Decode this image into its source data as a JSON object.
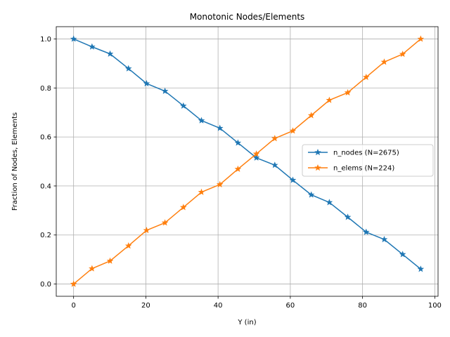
{
  "chart_data": {
    "type": "line",
    "title": "Monotonic Nodes/Elements",
    "xlabel": "Y (in)",
    "ylabel": "Fraction of Nodes, Elements",
    "xlim": [
      -4.8,
      100.9
    ],
    "ylim": [
      -0.05,
      1.05
    ],
    "xticks": [
      0,
      20,
      40,
      60,
      80,
      100
    ],
    "yticks": [
      0.0,
      0.2,
      0.4,
      0.6,
      0.8,
      1.0
    ],
    "xtick_labels": [
      "0",
      "20",
      "40",
      "60",
      "80",
      "100"
    ],
    "ytick_labels": [
      "0.0",
      "0.2",
      "0.4",
      "0.6",
      "0.8",
      "1.0"
    ],
    "grid": true,
    "legend_position": "center-right",
    "x": [
      0,
      5.1,
      10.1,
      15.2,
      20.2,
      25.3,
      30.4,
      35.4,
      40.5,
      45.5,
      50.6,
      55.7,
      60.7,
      65.8,
      70.8,
      75.9,
      81.0,
      86.0,
      91.1,
      96.1
    ],
    "series": [
      {
        "name": "n_nodes (N=2675)",
        "color": "#1f77b4",
        "marker": "star",
        "values": [
          1.0,
          0.968,
          0.939,
          0.879,
          0.818,
          0.787,
          0.727,
          0.667,
          0.636,
          0.576,
          0.515,
          0.485,
          0.424,
          0.364,
          0.333,
          0.273,
          0.212,
          0.182,
          0.121,
          0.061
        ]
      },
      {
        "name": "n_elems (N=224)",
        "color": "#ff7f0e",
        "marker": "star",
        "values": [
          0.0,
          0.063,
          0.094,
          0.156,
          0.219,
          0.25,
          0.313,
          0.375,
          0.406,
          0.469,
          0.531,
          0.594,
          0.625,
          0.688,
          0.75,
          0.781,
          0.844,
          0.906,
          0.938,
          1.0
        ]
      }
    ]
  }
}
